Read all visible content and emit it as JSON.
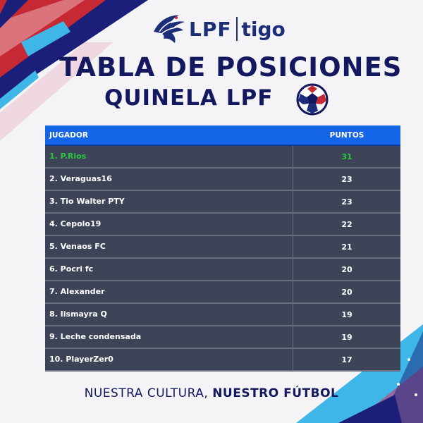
{
  "brand": {
    "logo_primary": "LPF",
    "logo_partner": "tigo",
    "navy_color": "#14185e",
    "header_blue": "#1565e8",
    "row_color": "#3e4457",
    "leader_color": "#28c840"
  },
  "heading": {
    "title": "TABLA DE POSICIONES",
    "subtitle": "QUINELA LPF"
  },
  "table": {
    "columns": [
      "JUGADOR",
      "PUNTOS"
    ],
    "rows": [
      {
        "player": "1. P.Rios",
        "points": "31"
      },
      {
        "player": "2. Veraguas16",
        "points": "23"
      },
      {
        "player": "3. Tio Walter PTY",
        "points": "23"
      },
      {
        "player": "4. Cepolo19",
        "points": "22"
      },
      {
        "player": "5. Venaos FC",
        "points": "21"
      },
      {
        "player": "6. Pocri fc",
        "points": "20"
      },
      {
        "player": "7. Alexander",
        "points": "20"
      },
      {
        "player": "8. Iismayra Q",
        "points": "19"
      },
      {
        "player": "9. Leche condensada",
        "points": "19"
      },
      {
        "player": "10. PlayerZer0",
        "points": "17"
      }
    ]
  },
  "footer": {
    "tagline_light": "NUESTRA CULTURA, ",
    "tagline_bold": "NUESTRO FÚTBOL"
  }
}
